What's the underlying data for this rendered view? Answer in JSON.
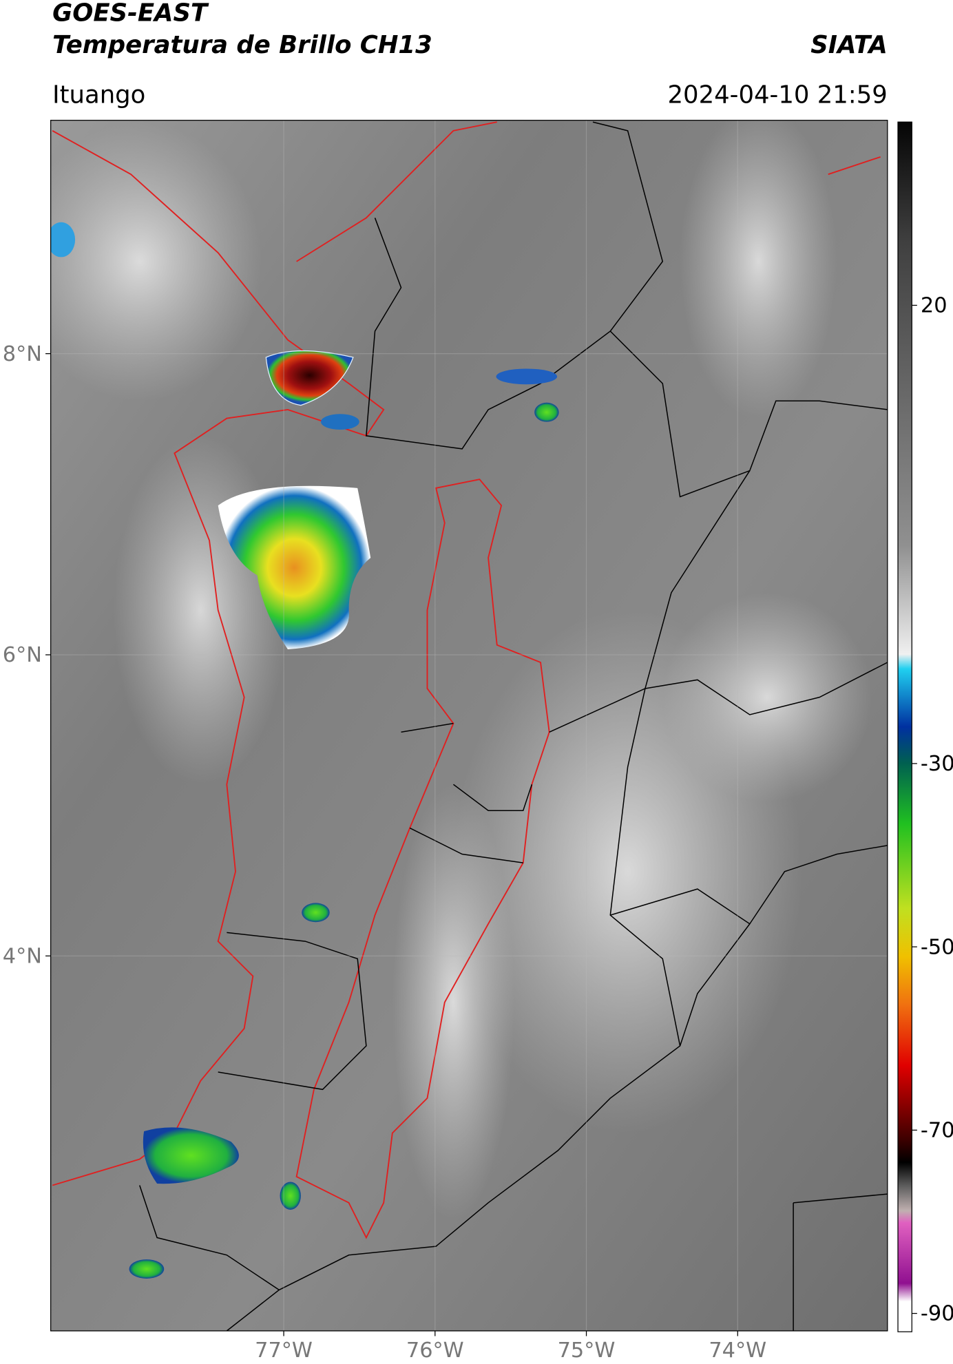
{
  "header": {
    "title_line1": "GOES-EAST",
    "title_line2": "Temperatura de Brillo CH13",
    "organization": "SIATA",
    "location": "Ituango",
    "datetime": "2024-04-10 21:59"
  },
  "map": {
    "xlim": [
      -78.54,
      -73.01
    ],
    "ylim": [
      1.51,
      9.55
    ],
    "xticks": [
      {
        "value": -77,
        "label": "77°W"
      },
      {
        "value": -76,
        "label": "76°W"
      },
      {
        "value": -75,
        "label": "75°W"
      },
      {
        "value": -74,
        "label": "74°W"
      }
    ],
    "yticks": [
      {
        "value": 8,
        "label": "8°N"
      },
      {
        "value": 6,
        "label": "6°N"
      },
      {
        "value": 4,
        "label": "4°N"
      }
    ]
  },
  "colorbar": {
    "lim": [
      -92,
      40
    ],
    "ticks": [
      20,
      -30,
      -50,
      -70,
      -90
    ]
  }
}
